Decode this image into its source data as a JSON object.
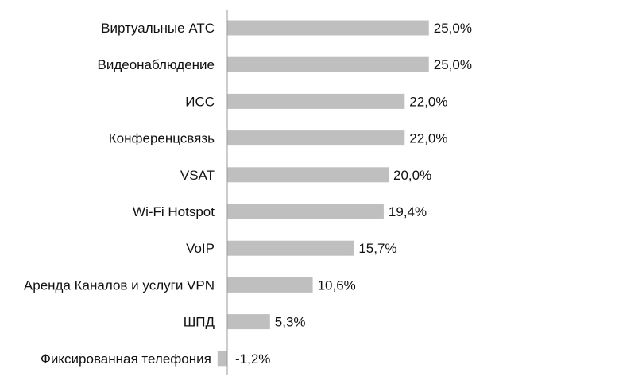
{
  "chart_data": {
    "type": "bar",
    "orientation": "horizontal",
    "categories": [
      "Виртуальные АТС",
      "Видеонаблюдение",
      "ИСС",
      "Конференцсвязь",
      "VSAT",
      "Wi-Fi Hotspot",
      "VoIP",
      "Аренда Каналов и услуги VPN",
      "ШПД",
      "Фиксированная телефония"
    ],
    "values": [
      25.0,
      25.0,
      22.0,
      22.0,
      20.0,
      19.4,
      15.7,
      10.6,
      5.3,
      -1.2
    ],
    "value_labels": [
      "25,0%",
      "25,0%",
      "22,0%",
      "22,0%",
      "20,0%",
      "19,4%",
      "15,7%",
      "10,6%",
      "5,3%",
      "-1,2%"
    ],
    "xlim": [
      -1.2,
      25.0
    ],
    "grid": false,
    "legend": "none",
    "bar_color": "#bfbfbf",
    "axis_color": "#9a9a9a"
  }
}
